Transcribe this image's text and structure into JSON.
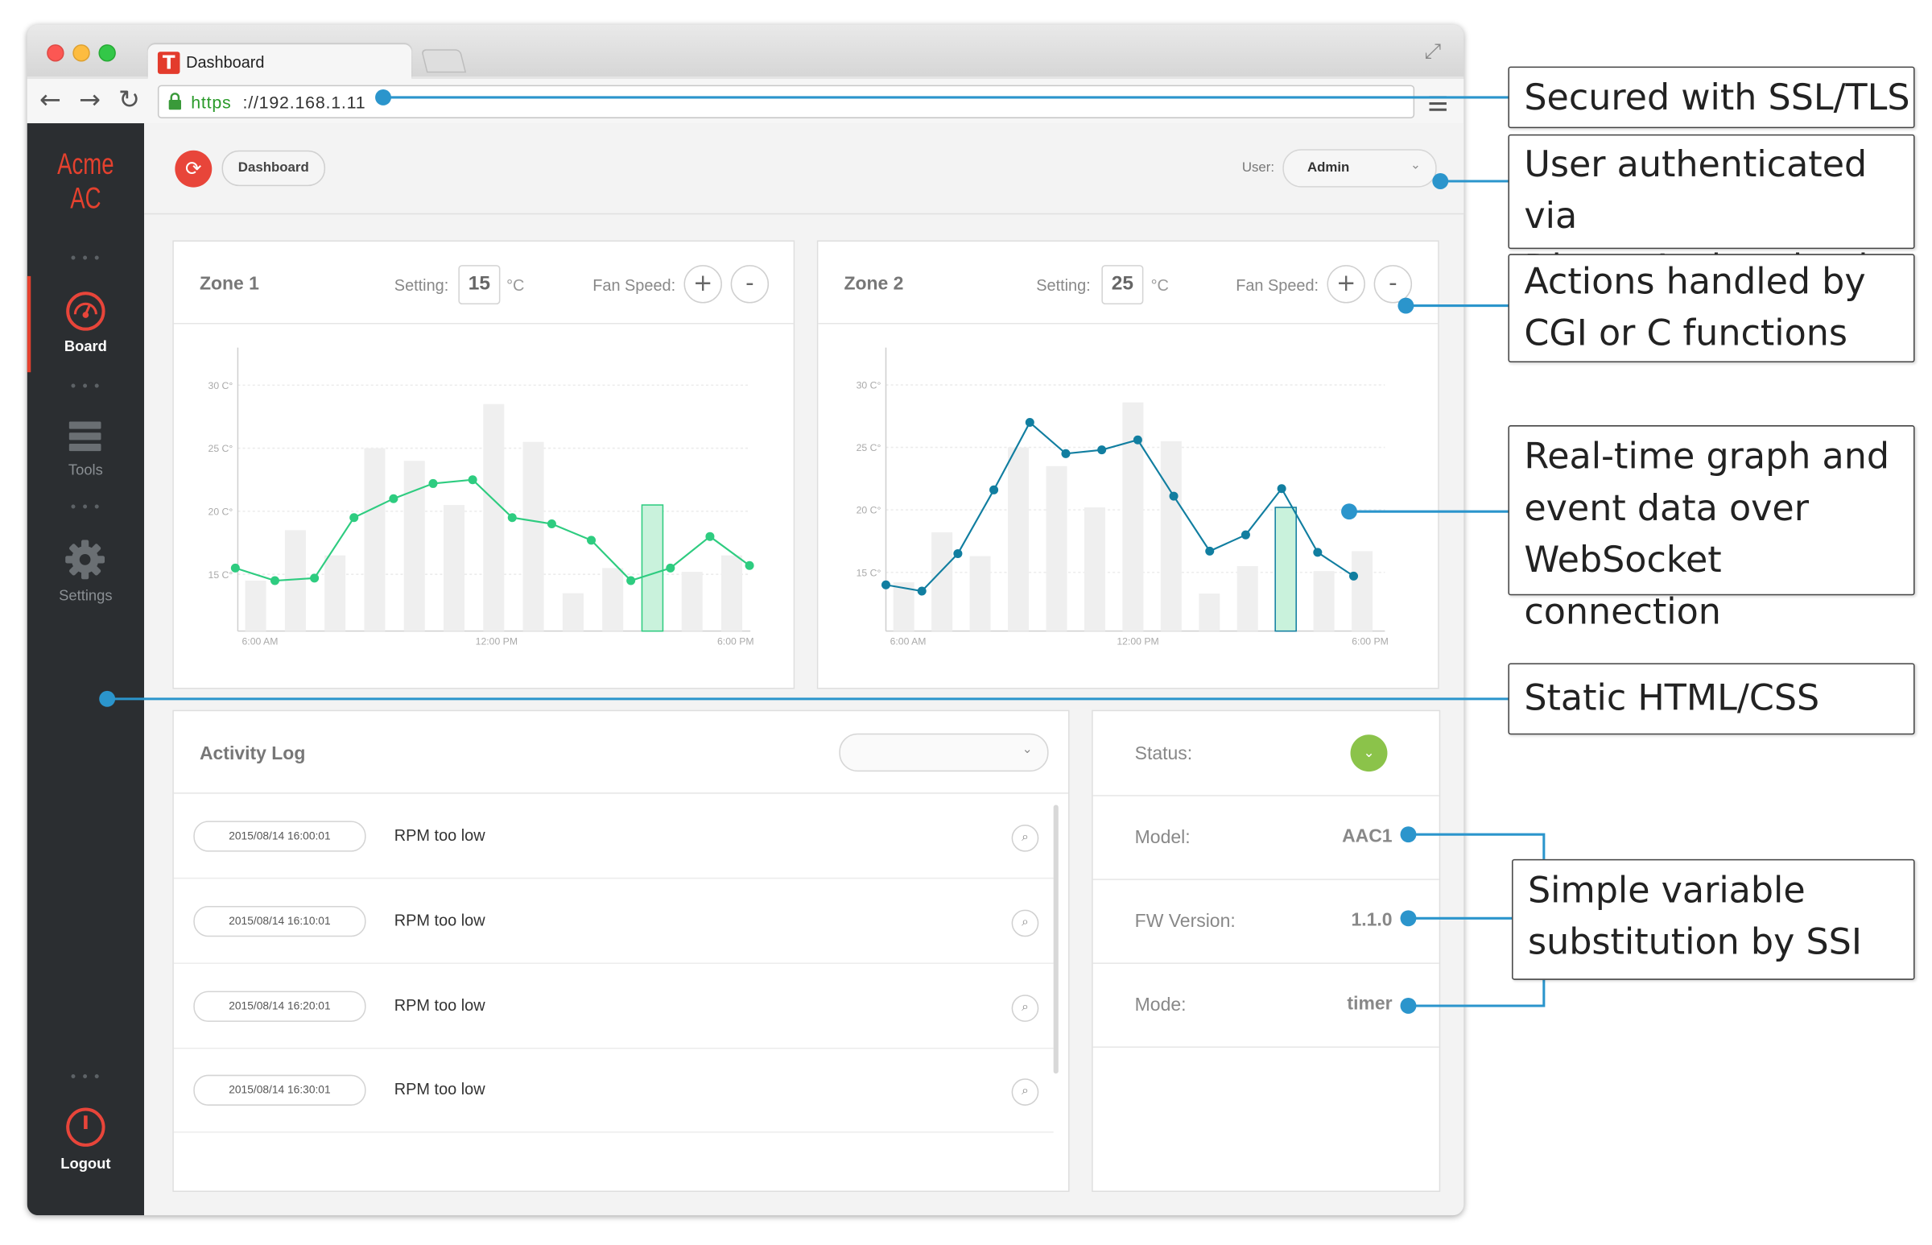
{
  "browser": {
    "tab_title": "Dashboard",
    "tab_logo": "T",
    "url_scheme": "https",
    "url_rest": "://192.168.1.11"
  },
  "sidebar": {
    "brand": "Acme AC",
    "items": [
      {
        "label": "Board",
        "icon": "gauge-icon",
        "active": true
      },
      {
        "label": "Tools",
        "icon": "stack-icon",
        "active": false
      },
      {
        "label": "Settings",
        "icon": "gear-icon",
        "active": false
      }
    ],
    "logout_label": "Logout"
  },
  "header": {
    "breadcrumb": "Dashboard",
    "user_label": "User:",
    "user_value": "Admin"
  },
  "zones": [
    {
      "title": "Zone 1",
      "setting_label": "Setting:",
      "setting_value": "15",
      "unit": "°C",
      "fan_label": "Fan Speed:",
      "plus": "+",
      "minus": "-"
    },
    {
      "title": "Zone 2",
      "setting_label": "Setting:",
      "setting_value": "25",
      "unit": "°C",
      "fan_label": "Fan Speed:",
      "plus": "+",
      "minus": "-"
    }
  ],
  "chart_data": [
    {
      "type": "bar",
      "yticks": [
        "30 C°",
        "25 C°",
        "20 C°",
        "15 C°"
      ],
      "ytick_values": [
        30,
        25,
        20,
        15
      ],
      "xticks": [
        "6:00 AM",
        "12:00 PM",
        "6:00 PM"
      ],
      "ylim": [
        10.5,
        32
      ],
      "grid": true,
      "colors": {
        "bar": "#efefef",
        "bar_highlight": "#c9f2dc",
        "line": "#2ecc80"
      },
      "bars": [
        14.5,
        18.5,
        16.5,
        25,
        24,
        20.5,
        28.5,
        25.5,
        13.5,
        15.5,
        20.5,
        15.2,
        16.5
      ],
      "highlight_bar": 10,
      "line": [
        15.5,
        14.5,
        14.7,
        19.5,
        21,
        22.2,
        22.5,
        19.5,
        19,
        17.7,
        14.5,
        15.5,
        18,
        15.7
      ]
    },
    {
      "type": "bar",
      "yticks": [
        "30 C°",
        "25 C°",
        "20 C°",
        "15 C°"
      ],
      "ytick_values": [
        30,
        25,
        20,
        15
      ],
      "xticks": [
        "6:00 AM",
        "12:00 PM",
        "6:00 PM"
      ],
      "ylim": [
        10.3,
        32
      ],
      "grid": true,
      "colors": {
        "bar": "#efefef",
        "bar_highlight": "#c9f2dc",
        "line": "#117ea0"
      },
      "bars": [
        14.2,
        18.2,
        16.3,
        25,
        23.5,
        20.2,
        28.6,
        25.5,
        13.3,
        15.5,
        20.2,
        15.1,
        16.7
      ],
      "highlight_bar": 10,
      "line": [
        14,
        13.5,
        16.5,
        21.6,
        27,
        24.5,
        24.8,
        25.6,
        21.1,
        16.7,
        18,
        21.7,
        16.6,
        14.7
      ]
    }
  ],
  "activity_log": {
    "title": "Activity Log",
    "rows": [
      {
        "time": "2015/08/14 16:00:01",
        "message": "RPM too low"
      },
      {
        "time": "2015/08/14 16:10:01",
        "message": "RPM too low"
      },
      {
        "time": "2015/08/14 16:20:01",
        "message": "RPM too low"
      },
      {
        "time": "2015/08/14 16:30:01",
        "message": "RPM too low"
      }
    ]
  },
  "status_panel": {
    "rows": [
      {
        "label": "Status:",
        "value": ""
      },
      {
        "label": "Model:",
        "value": "AAC1"
      },
      {
        "label": "FW Version:",
        "value": "1.1.0"
      },
      {
        "label": "Mode:",
        "value": "timer"
      }
    ],
    "status_color": "#8bc34a"
  },
  "callouts": [
    {
      "text": "Secured with SSL/TLS"
    },
    {
      "text": "User authenticated via\nDigest Authentication"
    },
    {
      "text": "Actions handled by\nCGI or C functions"
    },
    {
      "text": "Real-time graph and\nevent data over\nWebSocket connection"
    },
    {
      "text": "Static HTML/CSS"
    },
    {
      "text": "Simple variable\nsubstitution by SSI"
    }
  ],
  "annotation_color": "#2b95cc"
}
